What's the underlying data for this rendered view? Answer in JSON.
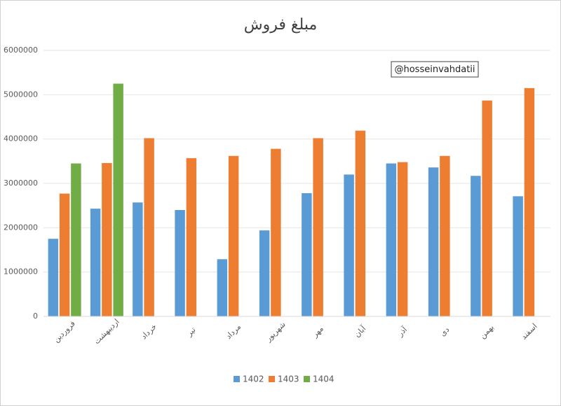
{
  "chart_data": {
    "type": "bar",
    "title": "مبلغ فروش",
    "annotation": "@hosseinvahdatii",
    "categories": [
      "فروردین",
      "اردیبهشت",
      "خرداد",
      "تیر",
      "مرداد",
      "شهریور",
      "مهر",
      "آبان",
      "آذر",
      "دی",
      "بهمن",
      "اسفند"
    ],
    "series": [
      {
        "name": "1402",
        "color": "#5b9bd5",
        "values": [
          1750000,
          2430000,
          2570000,
          2400000,
          1290000,
          1940000,
          2780000,
          3200000,
          3450000,
          3360000,
          3170000,
          2710000
        ]
      },
      {
        "name": "1403",
        "color": "#ed7d31",
        "values": [
          2770000,
          3460000,
          4020000,
          3570000,
          3620000,
          3780000,
          4020000,
          4190000,
          3480000,
          3620000,
          4870000,
          5150000
        ]
      },
      {
        "name": "1404",
        "color": "#70ad47",
        "values": [
          3450000,
          5250000,
          null,
          null,
          null,
          null,
          null,
          null,
          null,
          null,
          null,
          null
        ]
      }
    ],
    "ylim": [
      0,
      6000000
    ],
    "yticks": [
      0,
      1000000,
      2000000,
      3000000,
      4000000,
      5000000,
      6000000
    ],
    "grid": true,
    "legend": "bottom"
  }
}
